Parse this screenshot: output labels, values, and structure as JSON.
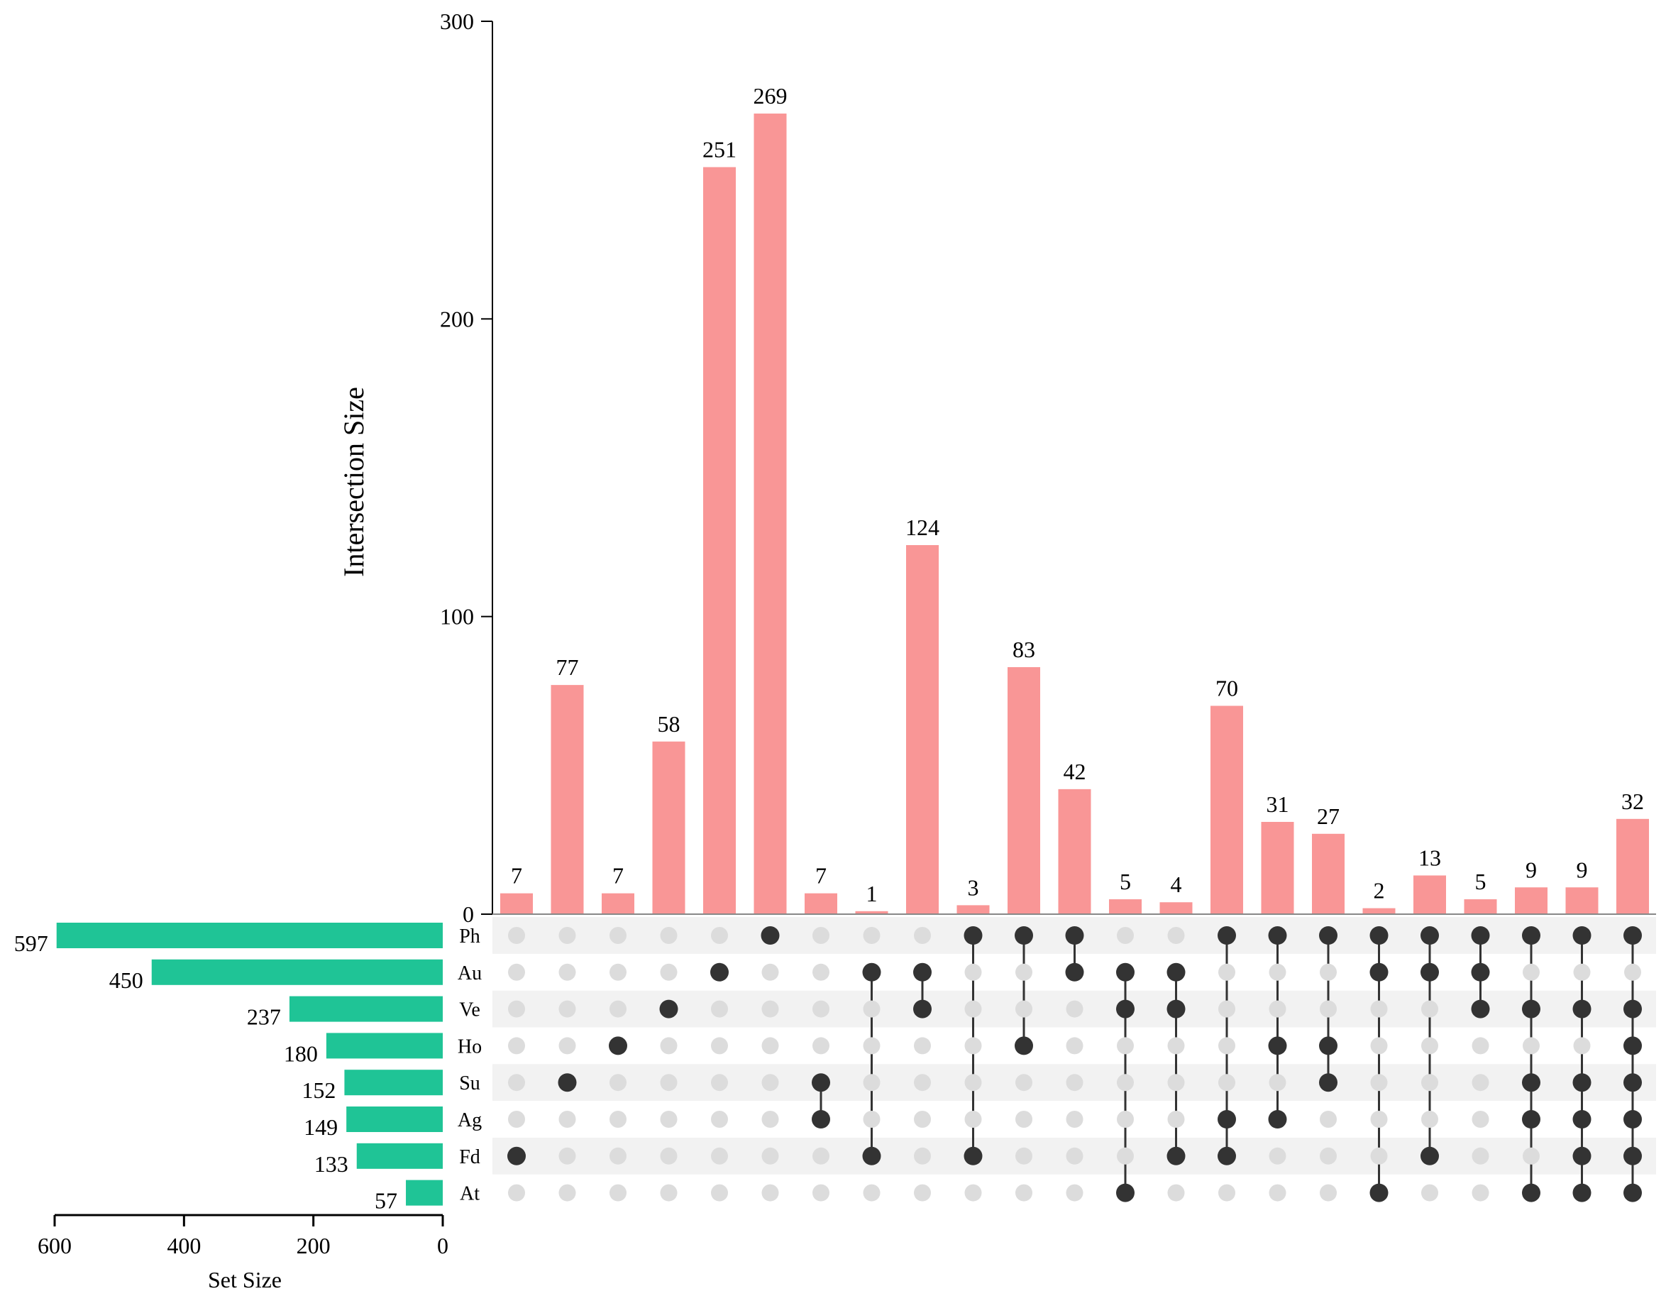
{
  "chart_data": {
    "type": "upset",
    "y_axis_label": "Intersection Size",
    "x_axis_label": "Set Size",
    "intersection_axis": {
      "ylim": [
        0,
        300
      ],
      "ticks": [
        0,
        100,
        200,
        300
      ]
    },
    "set_size_axis": {
      "xlim": [
        600,
        0
      ],
      "ticks": [
        600,
        400,
        200,
        0
      ]
    },
    "sets": [
      {
        "name": "Ph",
        "size": 597
      },
      {
        "name": "Au",
        "size": 450
      },
      {
        "name": "Ve",
        "size": 237
      },
      {
        "name": "Ho",
        "size": 180
      },
      {
        "name": "Su",
        "size": 152
      },
      {
        "name": "Ag",
        "size": 149
      },
      {
        "name": "Fd",
        "size": 133
      },
      {
        "name": "At",
        "size": 57
      }
    ],
    "intersections": [
      {
        "sets": [
          "Fd"
        ],
        "size": 7
      },
      {
        "sets": [
          "Su"
        ],
        "size": 77
      },
      {
        "sets": [
          "Ho"
        ],
        "size": 7
      },
      {
        "sets": [
          "Ve"
        ],
        "size": 58
      },
      {
        "sets": [
          "Au"
        ],
        "size": 251
      },
      {
        "sets": [
          "Ph"
        ],
        "size": 269
      },
      {
        "sets": [
          "Su",
          "Ag"
        ],
        "size": 7
      },
      {
        "sets": [
          "Au",
          "Fd"
        ],
        "size": 1
      },
      {
        "sets": [
          "Au",
          "Ve"
        ],
        "size": 124
      },
      {
        "sets": [
          "Ph",
          "Fd"
        ],
        "size": 3
      },
      {
        "sets": [
          "Ph",
          "Ho"
        ],
        "size": 83
      },
      {
        "sets": [
          "Ph",
          "Au"
        ],
        "size": 42
      },
      {
        "sets": [
          "Au",
          "Ve",
          "At"
        ],
        "size": 5
      },
      {
        "sets": [
          "Au",
          "Ve",
          "Fd"
        ],
        "size": 4
      },
      {
        "sets": [
          "Ph",
          "Ag",
          "Fd"
        ],
        "size": 70
      },
      {
        "sets": [
          "Ph",
          "Ho",
          "Ag"
        ],
        "size": 31
      },
      {
        "sets": [
          "Ph",
          "Ho",
          "Su"
        ],
        "size": 27
      },
      {
        "sets": [
          "Ph",
          "Au",
          "At"
        ],
        "size": 2
      },
      {
        "sets": [
          "Ph",
          "Au",
          "Fd"
        ],
        "size": 13
      },
      {
        "sets": [
          "Ph",
          "Au",
          "Ve"
        ],
        "size": 5
      },
      {
        "sets": [
          "Ph",
          "Ve",
          "Su",
          "Ag",
          "At"
        ],
        "size": 9
      },
      {
        "sets": [
          "Ph",
          "Ve",
          "Su",
          "Ag",
          "Fd",
          "At"
        ],
        "size": 9
      },
      {
        "sets": [
          "Ph",
          "Ve",
          "Ho",
          "Su",
          "Ag",
          "Fd",
          "At"
        ],
        "size": 32
      }
    ],
    "colors": {
      "intersection_bar": "#f99696",
      "set_bar": "#1fc496",
      "dot_active": "#333333",
      "dot_inactive": "#dcdcdc",
      "row_shade": "#f2f2f2",
      "axis": "#000000"
    }
  }
}
